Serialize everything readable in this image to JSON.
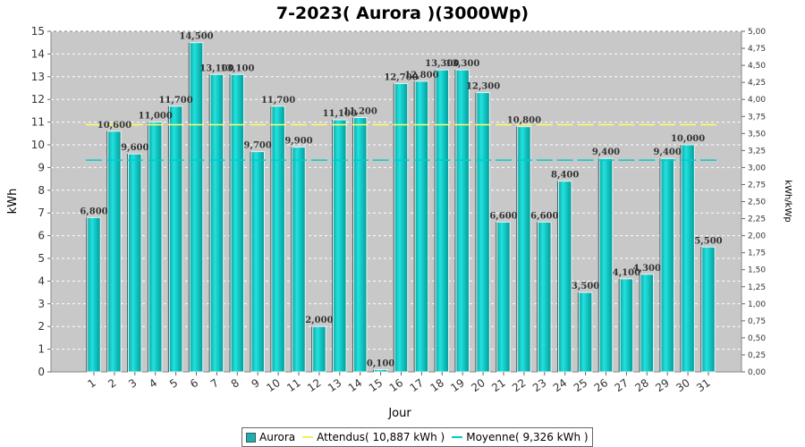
{
  "chart_data": {
    "type": "bar",
    "title": "7-2023( Aurora )(3000Wp)",
    "xlabel": "Jour",
    "ylabel": "kWh",
    "y2label": "kWh/kWp",
    "ylim": [
      0,
      15
    ],
    "y2lim": [
      0,
      5
    ],
    "categories": [
      "1",
      "2",
      "3",
      "4",
      "5",
      "6",
      "7",
      "8",
      "9",
      "10",
      "11",
      "12",
      "13",
      "14",
      "15",
      "16",
      "17",
      "18",
      "19",
      "20",
      "21",
      "22",
      "23",
      "24",
      "25",
      "26",
      "27",
      "28",
      "29",
      "30",
      "31"
    ],
    "series": [
      {
        "name": "Aurora",
        "color": "#00c8c8",
        "values": [
          6.8,
          10.6,
          9.6,
          11.0,
          11.7,
          14.5,
          13.1,
          13.1,
          9.7,
          11.7,
          9.9,
          2.0,
          11.1,
          11.2,
          0.1,
          12.7,
          12.8,
          13.3,
          13.3,
          12.3,
          6.6,
          10.8,
          6.6,
          8.4,
          3.5,
          9.4,
          4.1,
          4.3,
          9.4,
          10.0,
          5.5
        ],
        "labels": [
          "6,800",
          "10,600",
          "9,600",
          "11,000",
          "11,700",
          "14,500",
          "13,100",
          "13,100",
          "9,700",
          "11,700",
          "9,900",
          "2,000",
          "11,100",
          "11,200",
          "0,100",
          "12,700",
          "12,800",
          "13,300",
          "13,300",
          "12,300",
          "6,600",
          "10,800",
          "6,600",
          "8,400",
          "3,500",
          "9,400",
          "4,100",
          "4,300",
          "9,400",
          "10,000",
          "5,500"
        ]
      }
    ],
    "reference_lines": [
      {
        "name": "Attendus( 10,887 kWh )",
        "value": 10.887,
        "color": "#ffff66"
      },
      {
        "name": "Moyenne( 9,326 kWh )",
        "value": 9.326,
        "color": "#00cccc"
      }
    ],
    "y_ticks": [
      "0",
      "1",
      "2",
      "3",
      "4",
      "5",
      "6",
      "7",
      "8",
      "9",
      "10",
      "11",
      "12",
      "13",
      "14",
      "15"
    ],
    "y2_ticks": [
      "0,00",
      "0,25",
      "0,50",
      "0,75",
      "1,00",
      "1,25",
      "1,50",
      "1,75",
      "2,00",
      "2,25",
      "2,50",
      "2,75",
      "3,00",
      "3,25",
      "3,50",
      "3,75",
      "4,00",
      "4,25",
      "4,50",
      "4,75",
      "5,00"
    ],
    "grid": true,
    "legend_position": "bottom-center",
    "plot_background": "#c8c8c8"
  }
}
